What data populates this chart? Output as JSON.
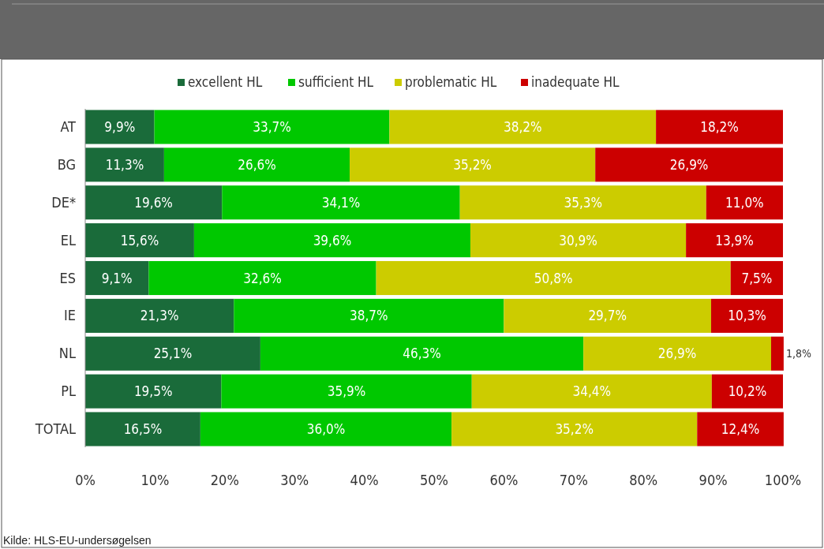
{
  "chart_data": {
    "type": "bar",
    "orientation": "horizontal",
    "stacked": true,
    "categories": [
      "AT",
      "BG",
      "DE*",
      "EL",
      "ES",
      "IE",
      "NL",
      "PL",
      "TOTAL"
    ],
    "series": [
      {
        "name": "excellent HL",
        "color": "#1a6b3a",
        "values": [
          9.9,
          11.3,
          19.6,
          15.6,
          9.1,
          21.3,
          25.1,
          19.5,
          16.5
        ],
        "value_labels": [
          "9,9%",
          "11,3%",
          "19,6%",
          "15,6%",
          "9,1%",
          "21,3%",
          "25,1%",
          "19,5%",
          "16,5%"
        ]
      },
      {
        "name": "sufficient HL",
        "color": "#00c800",
        "values": [
          33.7,
          26.6,
          34.1,
          39.6,
          32.6,
          38.7,
          46.3,
          35.9,
          36.0
        ],
        "value_labels": [
          "33,7%",
          "26,6%",
          "34,1%",
          "39,6%",
          "32,6%",
          "38,7%",
          "46,3%",
          "35,9%",
          "36,0%"
        ]
      },
      {
        "name": "problematic HL",
        "color": "#cccc00",
        "values": [
          38.2,
          35.2,
          35.3,
          30.9,
          50.8,
          29.7,
          26.9,
          34.4,
          35.2
        ],
        "value_labels": [
          "38,2%",
          "35,2%",
          "35,3%",
          "30,9%",
          "50,8%",
          "29,7%",
          "26,9%",
          "34,4%",
          "35,2%"
        ]
      },
      {
        "name": "inadequate HL",
        "color": "#cc0000",
        "values": [
          18.2,
          26.9,
          11.0,
          13.9,
          7.5,
          10.3,
          1.8,
          10.2,
          12.4
        ],
        "value_labels": [
          "18,2%",
          "26,9%",
          "11,0%",
          "13,9%",
          "7,5%",
          "10,3%",
          "1,8%",
          "10,2%",
          "12,4%"
        ]
      }
    ],
    "xlim": [
      0,
      100
    ],
    "xticks": [
      {
        "value": 0,
        "label": "0%"
      },
      {
        "value": 10,
        "label": "10%"
      },
      {
        "value": 20,
        "label": "20%"
      },
      {
        "value": 30,
        "label": "30%"
      },
      {
        "value": 40,
        "label": "40%"
      },
      {
        "value": 50,
        "label": "50%"
      },
      {
        "value": 60,
        "label": "60%"
      },
      {
        "value": 70,
        "label": "70%"
      },
      {
        "value": 80,
        "label": "80%"
      },
      {
        "value": 90,
        "label": "90%"
      },
      {
        "value": 100,
        "label": "100%"
      }
    ],
    "legend": "top",
    "annotations": [
      "Kilde: HLS-EU-undersøgelsen"
    ]
  }
}
